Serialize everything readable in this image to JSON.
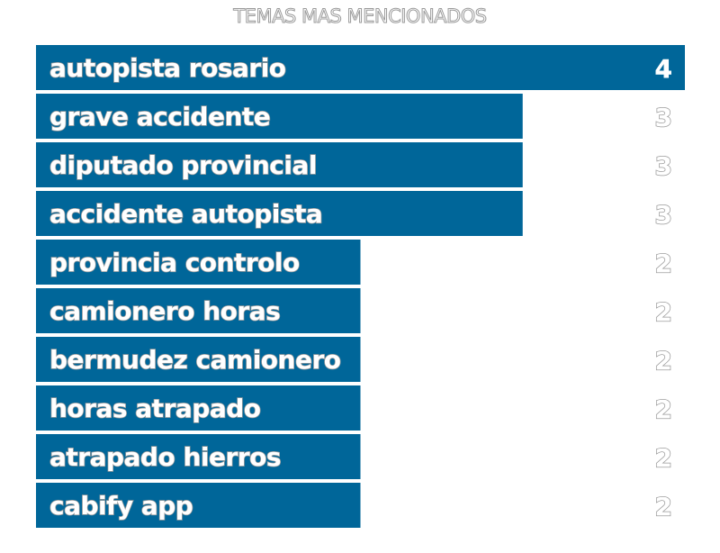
{
  "chart_data": {
    "type": "bar",
    "orientation": "horizontal",
    "title": "TEMAS MAS MENCIONADOS",
    "categories": [
      "autopista rosario",
      "grave accidente",
      "diputado provincial",
      "accidente autopista",
      "provincia controlo",
      "camionero horas",
      "bermudez camionero",
      "horas atrapado",
      "atrapado hierros",
      "cabify app"
    ],
    "values": [
      4,
      3,
      3,
      3,
      2,
      2,
      2,
      2,
      2,
      2
    ],
    "xlim": [
      0,
      4
    ],
    "grid": false,
    "legend": "none",
    "bar_color": "#006699",
    "label_color": "#ffffff",
    "label_outline_color": "#9a9a9a"
  }
}
